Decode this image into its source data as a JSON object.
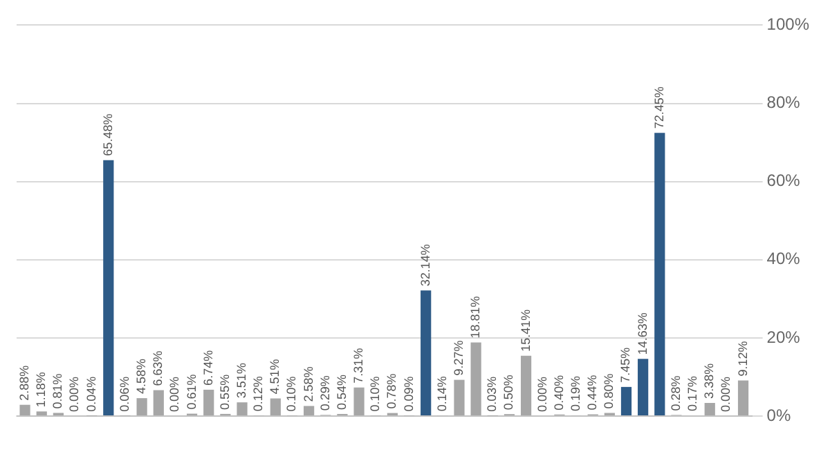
{
  "chart_data": {
    "type": "bar",
    "categories": [
      null,
      null,
      null,
      null,
      null,
      null,
      null,
      null,
      null,
      null,
      null,
      null,
      null,
      null,
      null,
      null,
      null,
      null,
      null,
      null,
      null,
      null,
      null,
      null,
      null,
      null,
      null,
      null,
      null,
      null,
      null,
      null,
      null,
      null,
      null,
      null,
      null,
      null,
      null,
      null,
      null,
      null,
      null,
      null
    ],
    "values": [
      2.88,
      1.18,
      0.81,
      0.0,
      0.04,
      65.48,
      0.06,
      4.58,
      6.63,
      0.0,
      0.61,
      6.74,
      0.55,
      3.51,
      0.12,
      4.51,
      0.1,
      2.58,
      0.29,
      0.54,
      7.31,
      0.1,
      0.78,
      0.09,
      32.14,
      0.14,
      9.27,
      18.81,
      0.03,
      0.5,
      15.41,
      0.0,
      0.4,
      0.19,
      0.44,
      0.8,
      7.45,
      14.63,
      72.45,
      0.28,
      0.17,
      3.38,
      0.0,
      9.12
    ],
    "colors": [
      "#a6a6a6",
      "#a6a6a6",
      "#a6a6a6",
      "#a6a6a6",
      "#a6a6a6",
      "#2e5b87",
      "#a6a6a6",
      "#a6a6a6",
      "#a6a6a6",
      "#a6a6a6",
      "#a6a6a6",
      "#a6a6a6",
      "#a6a6a6",
      "#a6a6a6",
      "#a6a6a6",
      "#a6a6a6",
      "#a6a6a6",
      "#a6a6a6",
      "#a6a6a6",
      "#a6a6a6",
      "#a6a6a6",
      "#a6a6a6",
      "#a6a6a6",
      "#a6a6a6",
      "#2e5b87",
      "#a6a6a6",
      "#a6a6a6",
      "#a6a6a6",
      "#a6a6a6",
      "#a6a6a6",
      "#a6a6a6",
      "#a6a6a6",
      "#a6a6a6",
      "#a6a6a6",
      "#a6a6a6",
      "#a6a6a6",
      "#2e5b87",
      "#2e5b87",
      "#2e5b87",
      "#a6a6a6",
      "#a6a6a6",
      "#a6a6a6",
      "#a6a6a6",
      "#a6a6a6"
    ],
    "ylim": [
      0,
      100
    ],
    "yticks": [
      {
        "value": 0,
        "label": "0%"
      },
      {
        "value": 20,
        "label": "20%"
      },
      {
        "value": 40,
        "label": "40%"
      },
      {
        "value": 60,
        "label": "60%"
      },
      {
        "value": 80,
        "label": "80%"
      },
      {
        "value": 100,
        "label": "100%"
      }
    ],
    "value_labels": [
      "2.88%",
      "1.18%",
      "0.81%",
      "0.00%",
      "0.04%",
      "65.48%",
      "0.06%",
      "4.58%",
      "6.63%",
      "0.00%",
      "0.61%",
      "6.74%",
      "0.55%",
      "3.51%",
      "0.12%",
      "4.51%",
      "0.10%",
      "2.58%",
      "0.29%",
      "0.54%",
      "7.31%",
      "0.10%",
      "0.78%",
      "0.09%",
      "32.14%",
      "0.14%",
      "9.27%",
      "18.81%",
      "0.03%",
      "0.50%",
      "15.41%",
      "0.00%",
      "0.40%",
      "0.19%",
      "0.44%",
      "0.80%",
      "7.45%",
      "14.63%",
      "72.45%",
      "0.28%",
      "0.17%",
      "3.38%",
      "0.00%",
      "9.12%"
    ],
    "grid": "y",
    "legend": false
  }
}
